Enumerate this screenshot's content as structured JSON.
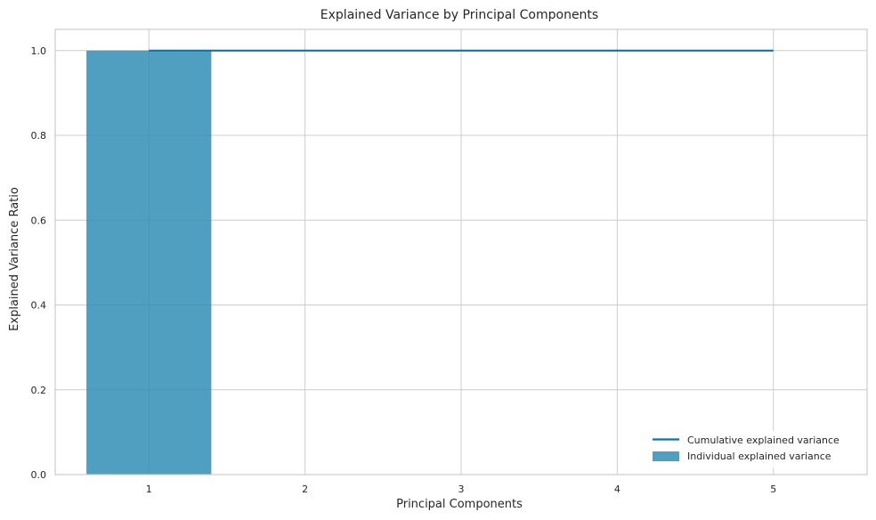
{
  "chart_data": {
    "type": "bar",
    "title": "Explained Variance by Principal Components",
    "xlabel": "Principal Components",
    "ylabel": "Explained Variance Ratio",
    "x_ticks": [
      "1",
      "2",
      "3",
      "4",
      "5"
    ],
    "y_ticks": [
      "0.0",
      "0.2",
      "0.4",
      "0.6",
      "0.8",
      "1.0"
    ],
    "xlim": [
      0.4,
      5.6
    ],
    "ylim": [
      0,
      1.05
    ],
    "grid": true,
    "legend_position": "lower-right",
    "series": [
      {
        "name": "Individual explained variance",
        "type": "bar",
        "color": "#2a8ab2",
        "x": [
          1,
          2,
          3,
          4,
          5
        ],
        "values": [
          1.0,
          0.0,
          0.0,
          0.0,
          0.0
        ]
      },
      {
        "name": "Cumulative explained variance",
        "type": "line",
        "color": "#0f72a8",
        "x": [
          1,
          2,
          3,
          4,
          5
        ],
        "values": [
          1.0,
          1.0,
          1.0,
          1.0,
          1.0
        ]
      }
    ],
    "legend": [
      "Cumulative explained variance",
      "Individual explained variance"
    ]
  }
}
